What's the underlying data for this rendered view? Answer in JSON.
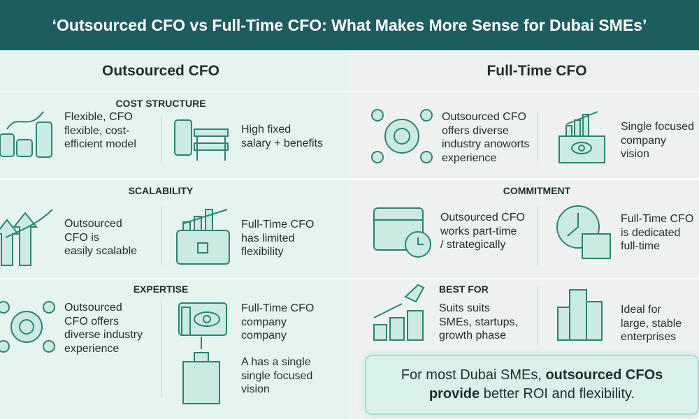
{
  "header": {
    "title": "‘Outsourced CFO vs Full-Time CFO: What Makes More Sense for Dubai SMEs’"
  },
  "columns": [
    {
      "title": "Outsourced CFO",
      "sections": [
        {
          "label": "COST STRUCTURE",
          "items": [
            [
              "Flexible, CFO",
              "flexible, cost-",
              "efficient model"
            ],
            [
              "High fixed",
              "salary + benefits"
            ]
          ]
        },
        {
          "label": "SCALABILITY",
          "items": [
            [
              "Outsourced",
              "CFO is",
              "easily scalable"
            ],
            [
              "Full-Time CFO",
              "has limited",
              "flexibility"
            ]
          ]
        },
        {
          "label": "EXPERTISE",
          "items": [
            [
              "Outsourced",
              "CFO offers",
              "diverse industry",
              "experience"
            ],
            [
              "Full-Time CFO",
              "company",
              "company"
            ],
            [
              "A has a single",
              "single focused",
              "vision"
            ]
          ]
        }
      ]
    },
    {
      "title": "Full-Time CFO",
      "sections": [
        {
          "items": [
            [
              "Outsourced CFO",
              "offers diverse",
              "industry anoworts",
              "experience"
            ],
            [
              "Single focused",
              "company",
              "vision"
            ]
          ]
        },
        {
          "label": "COMMITMENT",
          "items": [
            [
              "Outsourced CFO",
              "works part-time",
              "/ strategically"
            ],
            [
              "Full-Time CFO",
              "is dedicated",
              "full-time"
            ]
          ]
        },
        {
          "label": "BEST FOR",
          "items": [
            [
              "Suits suits",
              "SMEs, startups,",
              "growth phase"
            ],
            [
              "Ideal for",
              "large, stable",
              "enterprises"
            ]
          ]
        }
      ]
    }
  ],
  "callout": [
    "For most Dubai SMEs,",
    "outsourced CFOs",
    "provide",
    "better ROI and flexibility."
  ]
}
